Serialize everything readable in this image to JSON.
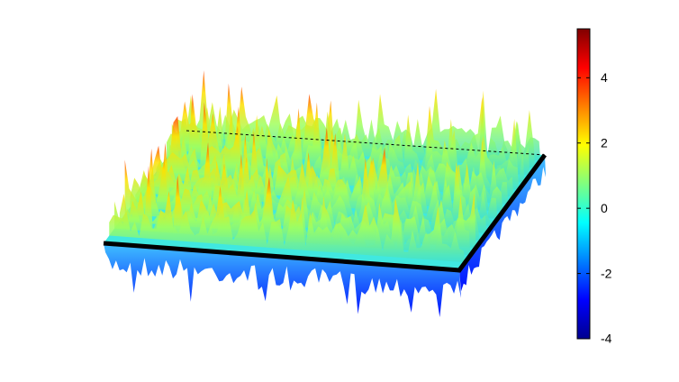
{
  "chart_data": {
    "type": "surface",
    "colormap": "jet",
    "clim": [
      -4,
      5.5
    ],
    "cticks": [
      -4,
      -2,
      0,
      2,
      4
    ]
  }
}
